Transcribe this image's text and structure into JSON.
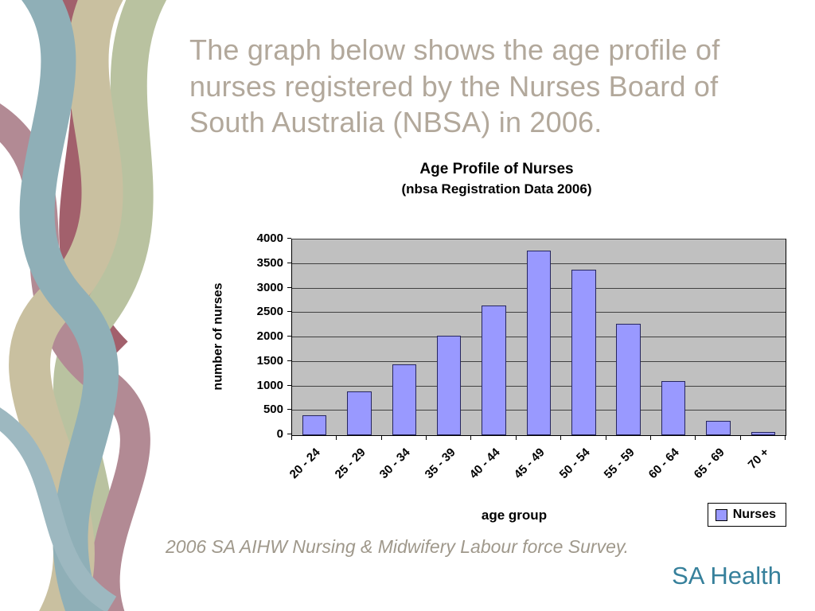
{
  "slide": {
    "title": "The graph below shows the age profile of nurses registered by the Nurses Board of South Australia (NBSA) in 2006.",
    "caption": "2006 SA AIHW Nursing & Midwifery Labour force Survey.",
    "brand": "SA Health"
  },
  "decor": {
    "ribbon_colors": [
      "#b9c2a0",
      "#8fafb7",
      "#c9c0a0",
      "#b28a94",
      "#a2606c",
      "#9db8c0"
    ]
  },
  "colors": {
    "title_text": "#b2a89b",
    "caption_text": "#9f988b",
    "brand_text": "#36809b",
    "plot_background": "#c0c0c0",
    "bar_fill": "#9999ff",
    "bar_border": "#26265e",
    "gridline": "#404040"
  },
  "chart_data": {
    "type": "bar",
    "title": "Age Profile of Nurses",
    "subtitle": "(nbsa Registration Data 2006)",
    "categories": [
      "20 - 24",
      "25 - 29",
      "30 - 34",
      "35 - 39",
      "40 - 44",
      "45 - 49",
      "50 - 54",
      "55 - 59",
      "60 - 64",
      "65 - 69",
      "70 +"
    ],
    "values": [
      400,
      900,
      1450,
      2030,
      2650,
      3780,
      3390,
      2270,
      1100,
      300,
      70
    ],
    "xlabel": "age group",
    "ylabel": "number of nurses",
    "ylim": [
      0,
      4000
    ],
    "ytick_step": 500,
    "legend_label": "Nurses",
    "legend_position": "bottom-right",
    "grid": true
  }
}
